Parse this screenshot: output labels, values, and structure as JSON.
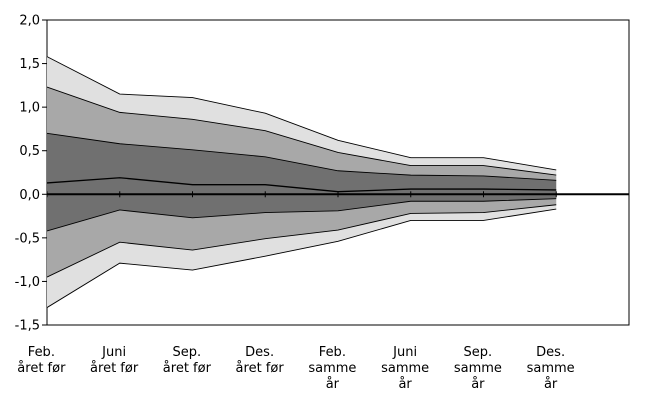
{
  "chart_data": {
    "type": "area",
    "title": "",
    "xlabel": "",
    "ylabel": "",
    "ylim": [
      -1.5,
      2.0
    ],
    "yticks": [
      "2,0",
      "1,5",
      "1,0",
      "0,5",
      "0,0",
      "-0,5",
      "-1,0",
      "-1,5"
    ],
    "categories": [
      [
        "Feb.",
        "året før"
      ],
      [
        "Juni",
        "året før"
      ],
      [
        "Sep.",
        "året før"
      ],
      [
        "Des.",
        "året før"
      ],
      [
        "Feb.",
        "samme",
        "år"
      ],
      [
        "Juni",
        "samme",
        "år"
      ],
      [
        "Sep.",
        "samme",
        "år"
      ],
      [
        "Des.",
        "samme",
        "år"
      ]
    ],
    "grid": false,
    "legend": "none",
    "band_colors": [
      "#e0e0e0",
      "#a8a8a8",
      "#707070"
    ],
    "series": [
      {
        "values": [
          1.58,
          1.15,
          1.11,
          0.93,
          0.62,
          0.42,
          0.42,
          0.28
        ]
      },
      {
        "values": [
          1.23,
          0.94,
          0.86,
          0.73,
          0.48,
          0.33,
          0.33,
          0.22
        ]
      },
      {
        "values": [
          0.7,
          0.58,
          0.51,
          0.43,
          0.27,
          0.22,
          0.21,
          0.16
        ]
      },
      {
        "values": [
          0.13,
          0.19,
          0.11,
          0.11,
          0.03,
          0.06,
          0.06,
          0.05
        ]
      },
      {
        "values": [
          -0.42,
          -0.18,
          -0.27,
          -0.21,
          -0.19,
          -0.08,
          -0.08,
          -0.05
        ]
      },
      {
        "values": [
          -0.95,
          -0.55,
          -0.64,
          -0.51,
          -0.41,
          -0.22,
          -0.21,
          -0.12
        ]
      },
      {
        "values": [
          -1.3,
          -0.79,
          -0.87,
          -0.71,
          -0.54,
          -0.3,
          -0.3,
          -0.17
        ]
      }
    ]
  }
}
